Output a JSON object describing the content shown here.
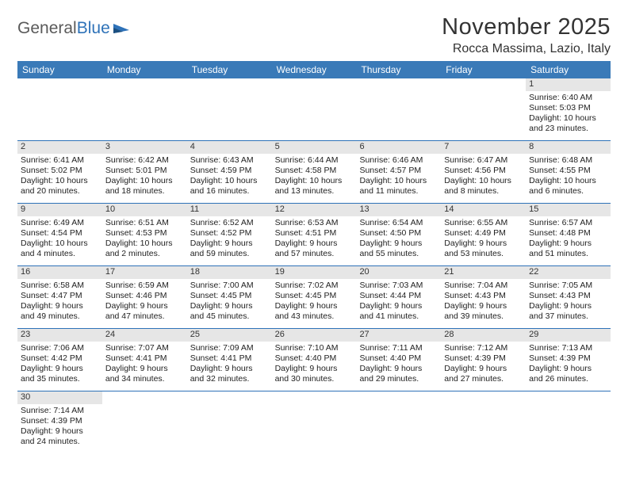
{
  "brand": {
    "part1": "General",
    "part2": "Blue"
  },
  "title": "November 2025",
  "location": "Rocca Massima, Lazio, Italy",
  "colors": {
    "header_bg": "#3a7ab8",
    "header_text": "#ffffff",
    "daynum_bg": "#e6e6e6",
    "border": "#2e72b8",
    "logo_gray": "#5a5a5a",
    "logo_blue": "#2e72b8",
    "text": "#222222"
  },
  "day_headers": [
    "Sunday",
    "Monday",
    "Tuesday",
    "Wednesday",
    "Thursday",
    "Friday",
    "Saturday"
  ],
  "weeks": [
    [
      {
        "empty": true
      },
      {
        "empty": true
      },
      {
        "empty": true
      },
      {
        "empty": true
      },
      {
        "empty": true
      },
      {
        "empty": true
      },
      {
        "day": "1",
        "sunrise": "Sunrise: 6:40 AM",
        "sunset": "Sunset: 5:03 PM",
        "daylight1": "Daylight: 10 hours",
        "daylight2": "and 23 minutes."
      }
    ],
    [
      {
        "day": "2",
        "sunrise": "Sunrise: 6:41 AM",
        "sunset": "Sunset: 5:02 PM",
        "daylight1": "Daylight: 10 hours",
        "daylight2": "and 20 minutes."
      },
      {
        "day": "3",
        "sunrise": "Sunrise: 6:42 AM",
        "sunset": "Sunset: 5:01 PM",
        "daylight1": "Daylight: 10 hours",
        "daylight2": "and 18 minutes."
      },
      {
        "day": "4",
        "sunrise": "Sunrise: 6:43 AM",
        "sunset": "Sunset: 4:59 PM",
        "daylight1": "Daylight: 10 hours",
        "daylight2": "and 16 minutes."
      },
      {
        "day": "5",
        "sunrise": "Sunrise: 6:44 AM",
        "sunset": "Sunset: 4:58 PM",
        "daylight1": "Daylight: 10 hours",
        "daylight2": "and 13 minutes."
      },
      {
        "day": "6",
        "sunrise": "Sunrise: 6:46 AM",
        "sunset": "Sunset: 4:57 PM",
        "daylight1": "Daylight: 10 hours",
        "daylight2": "and 11 minutes."
      },
      {
        "day": "7",
        "sunrise": "Sunrise: 6:47 AM",
        "sunset": "Sunset: 4:56 PM",
        "daylight1": "Daylight: 10 hours",
        "daylight2": "and 8 minutes."
      },
      {
        "day": "8",
        "sunrise": "Sunrise: 6:48 AM",
        "sunset": "Sunset: 4:55 PM",
        "daylight1": "Daylight: 10 hours",
        "daylight2": "and 6 minutes."
      }
    ],
    [
      {
        "day": "9",
        "sunrise": "Sunrise: 6:49 AM",
        "sunset": "Sunset: 4:54 PM",
        "daylight1": "Daylight: 10 hours",
        "daylight2": "and 4 minutes."
      },
      {
        "day": "10",
        "sunrise": "Sunrise: 6:51 AM",
        "sunset": "Sunset: 4:53 PM",
        "daylight1": "Daylight: 10 hours",
        "daylight2": "and 2 minutes."
      },
      {
        "day": "11",
        "sunrise": "Sunrise: 6:52 AM",
        "sunset": "Sunset: 4:52 PM",
        "daylight1": "Daylight: 9 hours",
        "daylight2": "and 59 minutes."
      },
      {
        "day": "12",
        "sunrise": "Sunrise: 6:53 AM",
        "sunset": "Sunset: 4:51 PM",
        "daylight1": "Daylight: 9 hours",
        "daylight2": "and 57 minutes."
      },
      {
        "day": "13",
        "sunrise": "Sunrise: 6:54 AM",
        "sunset": "Sunset: 4:50 PM",
        "daylight1": "Daylight: 9 hours",
        "daylight2": "and 55 minutes."
      },
      {
        "day": "14",
        "sunrise": "Sunrise: 6:55 AM",
        "sunset": "Sunset: 4:49 PM",
        "daylight1": "Daylight: 9 hours",
        "daylight2": "and 53 minutes."
      },
      {
        "day": "15",
        "sunrise": "Sunrise: 6:57 AM",
        "sunset": "Sunset: 4:48 PM",
        "daylight1": "Daylight: 9 hours",
        "daylight2": "and 51 minutes."
      }
    ],
    [
      {
        "day": "16",
        "sunrise": "Sunrise: 6:58 AM",
        "sunset": "Sunset: 4:47 PM",
        "daylight1": "Daylight: 9 hours",
        "daylight2": "and 49 minutes."
      },
      {
        "day": "17",
        "sunrise": "Sunrise: 6:59 AM",
        "sunset": "Sunset: 4:46 PM",
        "daylight1": "Daylight: 9 hours",
        "daylight2": "and 47 minutes."
      },
      {
        "day": "18",
        "sunrise": "Sunrise: 7:00 AM",
        "sunset": "Sunset: 4:45 PM",
        "daylight1": "Daylight: 9 hours",
        "daylight2": "and 45 minutes."
      },
      {
        "day": "19",
        "sunrise": "Sunrise: 7:02 AM",
        "sunset": "Sunset: 4:45 PM",
        "daylight1": "Daylight: 9 hours",
        "daylight2": "and 43 minutes."
      },
      {
        "day": "20",
        "sunrise": "Sunrise: 7:03 AM",
        "sunset": "Sunset: 4:44 PM",
        "daylight1": "Daylight: 9 hours",
        "daylight2": "and 41 minutes."
      },
      {
        "day": "21",
        "sunrise": "Sunrise: 7:04 AM",
        "sunset": "Sunset: 4:43 PM",
        "daylight1": "Daylight: 9 hours",
        "daylight2": "and 39 minutes."
      },
      {
        "day": "22",
        "sunrise": "Sunrise: 7:05 AM",
        "sunset": "Sunset: 4:43 PM",
        "daylight1": "Daylight: 9 hours",
        "daylight2": "and 37 minutes."
      }
    ],
    [
      {
        "day": "23",
        "sunrise": "Sunrise: 7:06 AM",
        "sunset": "Sunset: 4:42 PM",
        "daylight1": "Daylight: 9 hours",
        "daylight2": "and 35 minutes."
      },
      {
        "day": "24",
        "sunrise": "Sunrise: 7:07 AM",
        "sunset": "Sunset: 4:41 PM",
        "daylight1": "Daylight: 9 hours",
        "daylight2": "and 34 minutes."
      },
      {
        "day": "25",
        "sunrise": "Sunrise: 7:09 AM",
        "sunset": "Sunset: 4:41 PM",
        "daylight1": "Daylight: 9 hours",
        "daylight2": "and 32 minutes."
      },
      {
        "day": "26",
        "sunrise": "Sunrise: 7:10 AM",
        "sunset": "Sunset: 4:40 PM",
        "daylight1": "Daylight: 9 hours",
        "daylight2": "and 30 minutes."
      },
      {
        "day": "27",
        "sunrise": "Sunrise: 7:11 AM",
        "sunset": "Sunset: 4:40 PM",
        "daylight1": "Daylight: 9 hours",
        "daylight2": "and 29 minutes."
      },
      {
        "day": "28",
        "sunrise": "Sunrise: 7:12 AM",
        "sunset": "Sunset: 4:39 PM",
        "daylight1": "Daylight: 9 hours",
        "daylight2": "and 27 minutes."
      },
      {
        "day": "29",
        "sunrise": "Sunrise: 7:13 AM",
        "sunset": "Sunset: 4:39 PM",
        "daylight1": "Daylight: 9 hours",
        "daylight2": "and 26 minutes."
      }
    ],
    [
      {
        "day": "30",
        "sunrise": "Sunrise: 7:14 AM",
        "sunset": "Sunset: 4:39 PM",
        "daylight1": "Daylight: 9 hours",
        "daylight2": "and 24 minutes."
      },
      {
        "empty": true
      },
      {
        "empty": true
      },
      {
        "empty": true
      },
      {
        "empty": true
      },
      {
        "empty": true
      },
      {
        "empty": true
      }
    ]
  ]
}
